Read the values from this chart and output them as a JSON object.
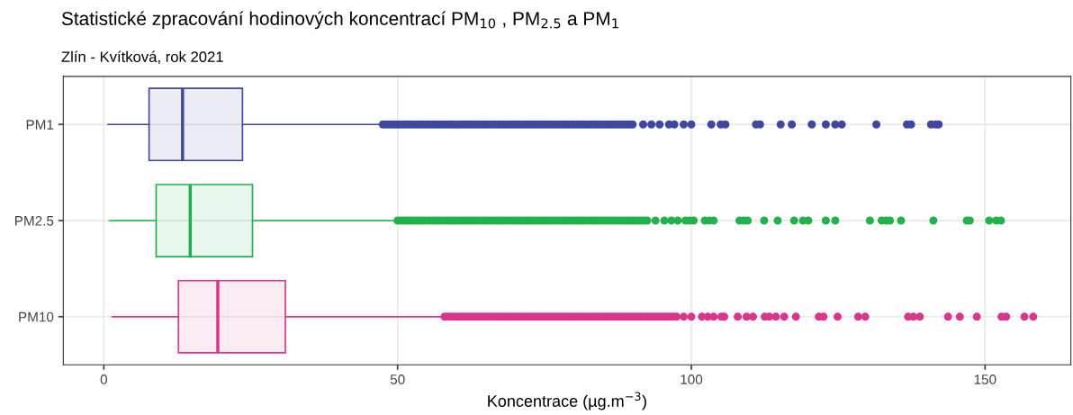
{
  "chart_data": {
    "type": "box",
    "orientation": "horizontal",
    "title": "Statistické zpracování hodinových koncentrací PM$_{10}$ , PM$_{2.5}$ a PM$_{1}$",
    "subtitle": "Zlín - Kvítková, rok 2021",
    "xlabel": "Koncentrace (µg.m$^{−3}$)",
    "categories": [
      "PM1",
      "PM2.5",
      "PM10"
    ],
    "colors": [
      "#3f48a0",
      "#22b14c",
      "#d9368b"
    ],
    "boxes": [
      {
        "low": 0.7,
        "q1": 7.7,
        "median": 13.4,
        "q3": 23.6,
        "high": 47.1,
        "outliers": [
          47.5,
          48,
          48.5,
          49,
          49.5,
          50,
          50.5,
          51,
          51.5,
          52,
          52.5,
          53,
          53.5,
          54,
          54.5,
          55,
          55.5,
          56,
          56.5,
          57,
          57.5,
          58,
          58.5,
          59,
          59.5,
          60,
          60.5,
          61,
          61.5,
          62,
          62.5,
          63,
          63.5,
          64,
          64.5,
          65,
          65.5,
          66,
          66.5,
          67,
          67.5,
          68,
          68.5,
          69,
          69.5,
          70,
          70.5,
          71,
          71.5,
          72,
          72.5,
          73,
          73.5,
          74,
          74.5,
          75,
          75.5,
          76,
          76.5,
          77,
          77.5,
          78,
          78.5,
          79,
          79.5,
          80,
          80.5,
          81,
          81.5,
          82,
          82.5,
          83,
          83.5,
          84,
          84.5,
          85,
          85.5,
          86,
          86.5,
          87,
          87.5,
          88,
          88.5,
          89,
          89.5,
          90,
          91.8,
          93.2,
          94.6,
          96.2,
          97.1,
          98.7,
          100.0,
          103.4,
          105.0,
          105.8,
          111.0,
          111.7,
          115.2,
          117.1,
          120.5,
          122.9,
          124.5,
          125.6,
          131.5,
          136.7,
          137.4,
          140.8,
          141.6,
          142.1
        ]
      },
      {
        "low": 0.9,
        "q1": 8.9,
        "median": 14.7,
        "q3": 25.3,
        "high": 49.7,
        "outliers": [
          50,
          50.5,
          51,
          51.5,
          52,
          52.5,
          53,
          53.5,
          54,
          54.5,
          55,
          55.5,
          56,
          56.5,
          57,
          57.5,
          58,
          58.5,
          59,
          59.5,
          60,
          60.5,
          61,
          61.5,
          62,
          62.5,
          63,
          63.5,
          64,
          64.5,
          65,
          65.5,
          66,
          66.5,
          67,
          67.5,
          68,
          68.5,
          69,
          69.5,
          70,
          70.5,
          71,
          71.5,
          72,
          72.5,
          73,
          73.5,
          74,
          74.5,
          75,
          75.5,
          76,
          76.5,
          77,
          77.5,
          78,
          78.5,
          79,
          79.5,
          80,
          80.5,
          81,
          81.5,
          82,
          82.5,
          83,
          83.5,
          84,
          84.5,
          85,
          85.5,
          86,
          86.5,
          87,
          87.5,
          88,
          88.5,
          89,
          89.5,
          90,
          90.5,
          91,
          91.5,
          92,
          92.5,
          93.9,
          95.4,
          96.6,
          97.7,
          99.0,
          99.7,
          100.4,
          102.3,
          103.1,
          103.8,
          108.2,
          108.9,
          109.6,
          112.4,
          114.7,
          117.5,
          119.0,
          119.9,
          122.9,
          124.5,
          130.4,
          132.4,
          133.2,
          133.8,
          135.7,
          141.2,
          146.9,
          147.4,
          150.7,
          151.9,
          152.7
        ]
      },
      {
        "low": 1.4,
        "q1": 12.7,
        "median": 19.4,
        "q3": 30.9,
        "high": 57.4,
        "outliers": [
          58,
          58.5,
          59,
          59.5,
          60,
          60.5,
          61,
          61.5,
          62,
          62.5,
          63,
          63.5,
          64,
          64.5,
          65,
          65.5,
          66,
          66.5,
          67,
          67.5,
          68,
          68.5,
          69,
          69.5,
          70,
          70.5,
          71,
          71.5,
          72,
          72.5,
          73,
          73.5,
          74,
          74.5,
          75,
          75.5,
          76,
          76.5,
          77,
          77.5,
          78,
          78.5,
          79,
          79.5,
          80,
          80.5,
          81,
          81.5,
          82,
          82.5,
          83,
          83.5,
          84,
          84.5,
          85,
          85.5,
          86,
          86.5,
          87,
          87.5,
          88,
          88.5,
          89,
          89.5,
          90,
          90.5,
          91,
          91.5,
          92,
          92.5,
          93,
          93.5,
          94,
          94.5,
          95,
          95.5,
          96,
          96.5,
          97,
          97.5,
          98.7,
          100.0,
          101.8,
          102.8,
          103.8,
          105.1,
          105.6,
          107.9,
          109.4,
          110.5,
          112.5,
          113.3,
          114.4,
          115.8,
          117.8,
          121.7,
          122.5,
          124.9,
          128.4,
          129.6,
          136.9,
          137.8,
          138.9,
          143.7,
          145.7,
          148.6,
          152.8,
          153.6,
          156.7,
          158.2
        ]
      }
    ],
    "xlim": [
      -6.9,
      164.6
    ],
    "xticks": [
      0,
      50,
      100,
      150
    ],
    "grid": true,
    "marker": "circle"
  }
}
